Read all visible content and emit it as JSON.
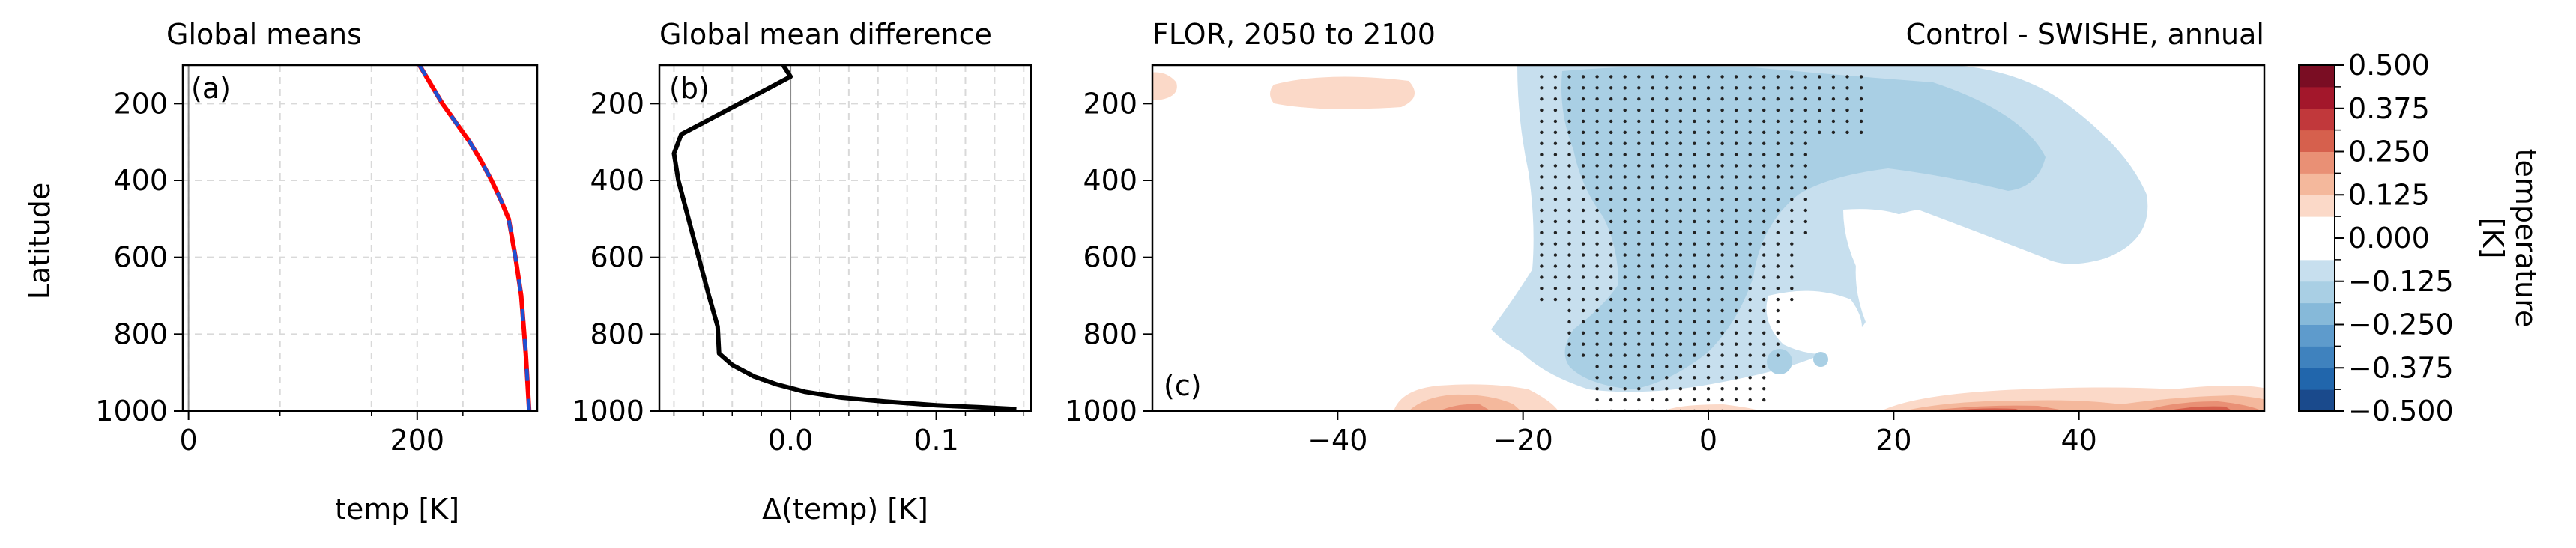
{
  "figure": {
    "colorbar": {
      "label": "temperature\n[K]",
      "levels": [
        -0.5,
        -0.4375,
        -0.375,
        -0.3125,
        -0.25,
        -0.1875,
        -0.125,
        -0.0625,
        0.0,
        0.0625,
        0.125,
        0.1875,
        0.25,
        0.3125,
        0.375,
        0.4375,
        0.5
      ],
      "tick_labels": [
        "0.500",
        "0.375",
        "0.250",
        "0.125",
        "0.000",
        "−0.125",
        "−0.250",
        "−0.375",
        "−0.500"
      ],
      "colors": [
        "#1a4a8c",
        "#2166ac",
        "#3f82be",
        "#5e9bcc",
        "#86b9d9",
        "#a9cfe4",
        "#c7dfee",
        "#ffffff",
        "#ffffff",
        "#fbd9c8",
        "#f4b89c",
        "#e99075",
        "#d6604d",
        "#c1383b",
        "#a3172b",
        "#7a0d23"
      ]
    }
  },
  "chart_data": [
    {
      "type": "line",
      "panel": "(a)",
      "title": "Global means",
      "xlabel": "temp [K]",
      "ylabel": "Latitude",
      "xlim": [
        -5,
        305
      ],
      "ylim": [
        1000,
        100
      ],
      "xticks": [
        0,
        200
      ],
      "yticks": [
        200,
        400,
        600,
        800,
        1000
      ],
      "grid": true,
      "series": [
        {
          "color": "#ff0000",
          "style": "solid",
          "x": [
            202,
            212,
            222,
            234,
            246,
            256,
            265,
            273,
            280,
            286,
            291,
            295,
            298
          ],
          "y": [
            100,
            150,
            200,
            250,
            300,
            350,
            400,
            450,
            500,
            600,
            700,
            850,
            1000
          ]
        },
        {
          "color": "#2050d0",
          "style": "dashed",
          "x": [
            202,
            212,
            222,
            234,
            246,
            256,
            265,
            273,
            280,
            286,
            291,
            295,
            298
          ],
          "y": [
            100,
            150,
            200,
            250,
            300,
            350,
            400,
            450,
            500,
            600,
            700,
            850,
            1000
          ]
        }
      ]
    },
    {
      "type": "line",
      "panel": "(b)",
      "title": "Global mean difference",
      "xlabel": "Δ(temp) [K]",
      "ylabel": "",
      "xlim": [
        -0.09,
        0.165
      ],
      "ylim": [
        1000,
        100
      ],
      "xticks": [
        0.0,
        0.1
      ],
      "xtick_labels": [
        "0.0",
        "0.1"
      ],
      "xticks_minor": [
        -0.08,
        -0.06,
        -0.04,
        -0.02,
        0.02,
        0.04,
        0.06,
        0.08,
        0.12,
        0.14,
        0.16
      ],
      "yticks": [
        200,
        400,
        600,
        800,
        1000
      ],
      "grid": true,
      "series": [
        {
          "color": "#000000",
          "style": "solid",
          "x": [
            -0.005,
            0.0,
            -0.01,
            -0.035,
            -0.06,
            -0.075,
            -0.08,
            -0.077,
            -0.07,
            -0.063,
            -0.056,
            -0.05,
            -0.049,
            -0.04,
            -0.025,
            -0.01,
            0.01,
            0.035,
            0.065,
            0.1,
            0.13,
            0.155
          ],
          "y": [
            100,
            130,
            150,
            200,
            250,
            280,
            330,
            400,
            500,
            600,
            700,
            780,
            850,
            880,
            910,
            930,
            950,
            965,
            975,
            985,
            990,
            995
          ]
        }
      ]
    },
    {
      "type": "heatmap",
      "panel": "(c)",
      "title_left": "FLOR, 2050 to 2100",
      "title_right": "Control - SWISHE, annual",
      "xlabel": "",
      "ylabel": "",
      "xlim": [
        -60,
        60
      ],
      "ylim": [
        1000,
        100
      ],
      "xticks": [
        -40,
        -20,
        0,
        20,
        40
      ],
      "yticks": [
        200,
        400,
        600,
        800,
        1000
      ],
      "stippling": "black dots where difference is significant"
    }
  ]
}
